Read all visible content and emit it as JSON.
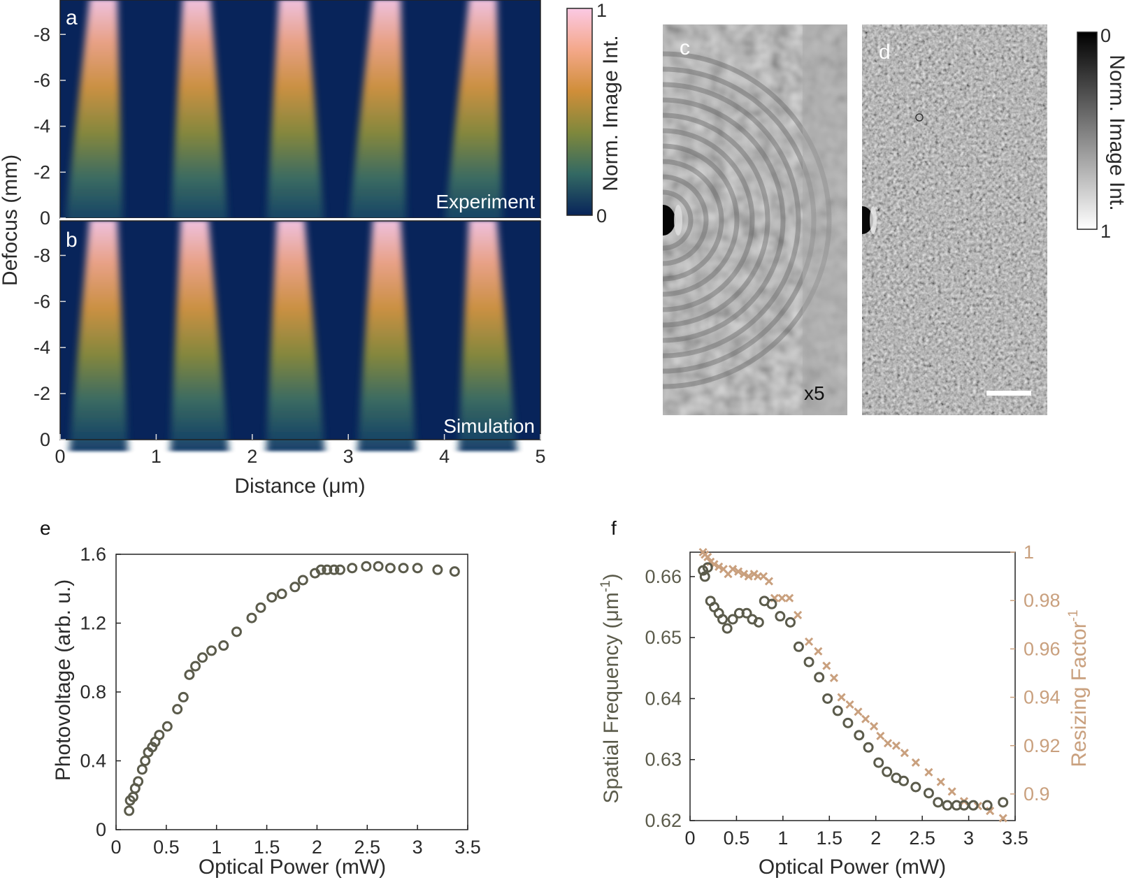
{
  "colors": {
    "heatmap_bg": "#08245a",
    "dark_series": "#5b5b4b",
    "light_series": "#c9a07e",
    "panel_letter_dark": "#111111",
    "panel_letter_light": "#ffffff"
  },
  "panel_labels": {
    "a": "a",
    "b": "b",
    "c": "c",
    "d": "d",
    "e": "e",
    "f": "f"
  },
  "chart_data": [
    {
      "id": "a",
      "type": "heatmap",
      "annotation": "Experiment",
      "xlabel": "Distance (μm)",
      "ylabel": "Defocus (mm)",
      "xlim": [
        0,
        5
      ],
      "ylim": [
        0,
        -9.5
      ],
      "xticks": [
        "0",
        "1",
        "2",
        "3",
        "4",
        "5"
      ],
      "yticks": [
        "-8",
        "-6",
        "-4",
        "-2",
        "0"
      ],
      "ytick_values": [
        -8,
        -6,
        -4,
        -2,
        0
      ],
      "lines": [
        {
          "x_center_top": 0.45,
          "x_center_bottom": 0.35
        },
        {
          "x_center_top": 1.42,
          "x_center_bottom": 1.45
        },
        {
          "x_center_top": 2.42,
          "x_center_bottom": 2.45
        },
        {
          "x_center_top": 3.4,
          "x_center_bottom": 3.3
        },
        {
          "x_center_top": 4.4,
          "x_center_bottom": 4.3
        }
      ]
    },
    {
      "id": "b",
      "type": "heatmap",
      "annotation": "Simulation",
      "xlabel": "Distance (μm)",
      "ylabel": "Defocus (mm)",
      "xlim": [
        0,
        5
      ],
      "ylim": [
        0,
        -9.5
      ],
      "xticks": [
        "0",
        "1",
        "2",
        "3",
        "4",
        "5"
      ],
      "yticks": [
        "-8",
        "-6",
        "-4",
        "-2",
        "0"
      ],
      "ytick_values": [
        -8,
        -6,
        -4,
        -2,
        0
      ],
      "lines": [
        {
          "x_center_top": 0.45,
          "x_center_bottom": 0.4
        },
        {
          "x_center_top": 1.4,
          "x_center_bottom": 1.45
        },
        {
          "x_center_top": 2.4,
          "x_center_bottom": 2.45
        },
        {
          "x_center_top": 3.4,
          "x_center_bottom": 3.4
        },
        {
          "x_center_top": 4.4,
          "x_center_bottom": 4.45
        }
      ]
    },
    {
      "id": "colorbar_ab",
      "type": "colorbar",
      "label": "Norm. Image Int.",
      "ticks": [
        "1",
        "0"
      ]
    },
    {
      "id": "c",
      "type": "image",
      "annotation": "x5"
    },
    {
      "id": "d",
      "type": "image",
      "annotation": "scale bar"
    },
    {
      "id": "colorbar_cd",
      "type": "colorbar",
      "label": "Norm. Image Int.",
      "ticks": [
        "0",
        "1"
      ]
    },
    {
      "id": "e",
      "type": "scatter",
      "xlabel": "Optical Power (mW)",
      "ylabel": "Photovoltage (arb. u.)",
      "xlim": [
        0,
        3.5
      ],
      "ylim": [
        0,
        1.6
      ],
      "xticks": [
        "0",
        "0.5",
        "1",
        "1.5",
        "2",
        "2.5",
        "3",
        "3.5"
      ],
      "xtick_values": [
        0,
        0.5,
        1,
        1.5,
        2,
        2.5,
        3,
        3.5
      ],
      "yticks": [
        "0",
        "0.4",
        "0.8",
        "1.2",
        "1.6"
      ],
      "ytick_values": [
        0,
        0.4,
        0.8,
        1.2,
        1.6
      ],
      "x": [
        0.13,
        0.14,
        0.17,
        0.19,
        0.22,
        0.26,
        0.29,
        0.32,
        0.36,
        0.39,
        0.43,
        0.51,
        0.61,
        0.67,
        0.73,
        0.79,
        0.86,
        0.95,
        1.07,
        1.2,
        1.35,
        1.44,
        1.55,
        1.65,
        1.78,
        1.86,
        1.98,
        2.04,
        2.1,
        2.17,
        2.23,
        2.35,
        2.49,
        2.61,
        2.73,
        2.86,
        3.0,
        3.2,
        3.37
      ],
      "y": [
        0.11,
        0.17,
        0.19,
        0.24,
        0.28,
        0.35,
        0.4,
        0.45,
        0.48,
        0.51,
        0.55,
        0.6,
        0.7,
        0.77,
        0.9,
        0.95,
        1.0,
        1.04,
        1.07,
        1.15,
        1.23,
        1.29,
        1.35,
        1.37,
        1.41,
        1.45,
        1.49,
        1.51,
        1.51,
        1.51,
        1.51,
        1.52,
        1.53,
        1.53,
        1.52,
        1.52,
        1.52,
        1.51,
        1.5
      ]
    },
    {
      "id": "f",
      "type": "scatter",
      "xlabel": "Optical Power (mW)",
      "ylabel": "Spatial Frequency (μm",
      "ylabel_sup": "-1",
      "ylabel_close": ")",
      "y2label": "Resizing Factor",
      "y2label_sup": "-1",
      "xlim": [
        0,
        3.5
      ],
      "ylim": [
        0.62,
        0.664
      ],
      "y2lim": [
        0.889,
        1.0
      ],
      "xticks": [
        "0",
        "0.5",
        "1",
        "1.5",
        "2",
        "2.5",
        "3",
        "3.5"
      ],
      "xtick_values": [
        0,
        0.5,
        1,
        1.5,
        2,
        2.5,
        3,
        3.5
      ],
      "yticks": [
        "0.62",
        "0.63",
        "0.64",
        "0.65",
        "0.66"
      ],
      "ytick_values": [
        0.62,
        0.63,
        0.64,
        0.65,
        0.66
      ],
      "y2ticks": [
        "0.9",
        "0.92",
        "0.94",
        "0.96",
        "0.98",
        "1"
      ],
      "y2tick_values": [
        0.9,
        0.92,
        0.94,
        0.96,
        0.98,
        1.0
      ],
      "series": [
        {
          "marker": "circle",
          "x": [
            0.14,
            0.16,
            0.19,
            0.22,
            0.26,
            0.31,
            0.35,
            0.4,
            0.46,
            0.53,
            0.61,
            0.67,
            0.74,
            0.8,
            0.88,
            0.97,
            1.08,
            1.17,
            1.28,
            1.39,
            1.48,
            1.59,
            1.7,
            1.82,
            1.92,
            2.03,
            2.12,
            2.22,
            2.3,
            2.43,
            2.57,
            2.67,
            2.77,
            2.87,
            2.95,
            3.05,
            3.2,
            3.37
          ],
          "y": [
            0.661,
            0.66,
            0.6615,
            0.656,
            0.655,
            0.654,
            0.653,
            0.6515,
            0.653,
            0.654,
            0.654,
            0.653,
            0.6525,
            0.656,
            0.6555,
            0.6535,
            0.6525,
            0.6485,
            0.646,
            0.6435,
            0.64,
            0.638,
            0.636,
            0.634,
            0.632,
            0.6295,
            0.628,
            0.627,
            0.6265,
            0.6255,
            0.6245,
            0.623,
            0.6225,
            0.6225,
            0.6225,
            0.6225,
            0.6225,
            0.623
          ]
        },
        {
          "marker": "x",
          "x": [
            0.14,
            0.16,
            0.19,
            0.22,
            0.26,
            0.31,
            0.36,
            0.41,
            0.46,
            0.52,
            0.58,
            0.63,
            0.69,
            0.73,
            0.79,
            0.85,
            0.91,
            0.99,
            1.07,
            1.16,
            1.28,
            1.38,
            1.47,
            1.55,
            1.63,
            1.72,
            1.81,
            1.89,
            1.98,
            2.05,
            2.13,
            2.22,
            2.31,
            2.43,
            2.57,
            2.7,
            2.82,
            2.95,
            3.1,
            3.23,
            3.37
          ],
          "y2": [
            1.0,
            0.999,
            0.998,
            0.996,
            0.995,
            0.994,
            0.993,
            0.991,
            0.993,
            0.992,
            0.991,
            0.99,
            0.991,
            0.99,
            0.99,
            0.988,
            0.981,
            0.981,
            0.981,
            0.974,
            0.963,
            0.959,
            0.953,
            0.948,
            0.94,
            0.937,
            0.934,
            0.931,
            0.928,
            0.924,
            0.921,
            0.92,
            0.917,
            0.913,
            0.909,
            0.905,
            0.901,
            0.897,
            0.895,
            0.893,
            0.89
          ]
        }
      ]
    }
  ]
}
